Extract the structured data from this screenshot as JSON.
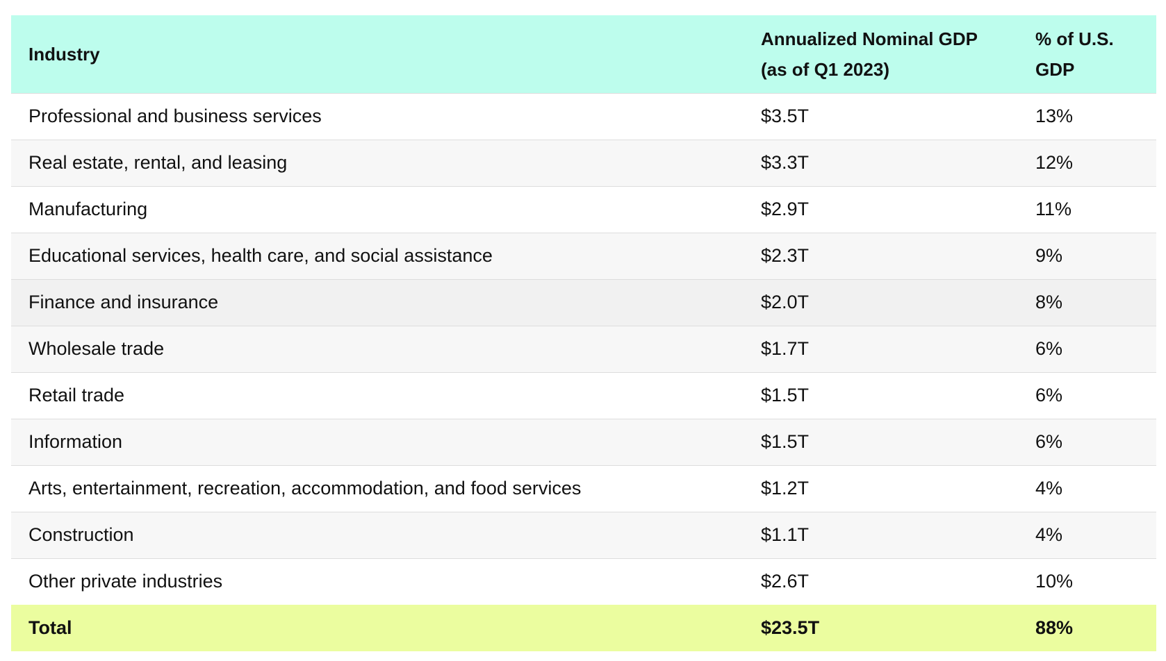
{
  "table": {
    "headers": {
      "industry": "Industry",
      "gdp_line1": "Annualized Nominal GDP",
      "gdp_line2": "(as of Q1 2023)",
      "pct_line1": "% of U.S.",
      "pct_line2": "GDP"
    },
    "rows": [
      {
        "industry": "Professional and business services",
        "gdp": "$3.5T",
        "pct": "13%"
      },
      {
        "industry": "Real estate, rental, and leasing",
        "gdp": "$3.3T",
        "pct": "12%"
      },
      {
        "industry": "Manufacturing",
        "gdp": "$2.9T",
        "pct": "11%"
      },
      {
        "industry": "Educational services, health care, and social assistance",
        "gdp": "$2.3T",
        "pct": "9%"
      },
      {
        "industry": "Finance and insurance",
        "gdp": "$2.0T",
        "pct": "8%"
      },
      {
        "industry": "Wholesale trade",
        "gdp": "$1.7T",
        "pct": "6%"
      },
      {
        "industry": "Retail trade",
        "gdp": "$1.5T",
        "pct": "6%"
      },
      {
        "industry": "Information",
        "gdp": "$1.5T",
        "pct": "6%"
      },
      {
        "industry": "Arts, entertainment, recreation, accommodation, and food services",
        "gdp": "$1.2T",
        "pct": "4%"
      },
      {
        "industry": "Construction",
        "gdp": "$1.1T",
        "pct": "4%"
      },
      {
        "industry": "Other private industries",
        "gdp": "$2.6T",
        "pct": "10%"
      }
    ],
    "total": {
      "industry": "Total",
      "gdp": "$23.5T",
      "pct": "88%"
    }
  },
  "colors": {
    "header_bg": "#bdfded",
    "total_bg": "#ebfd9f",
    "zebra_bg": "#f7f7f7",
    "row_border": "#dddddd"
  }
}
